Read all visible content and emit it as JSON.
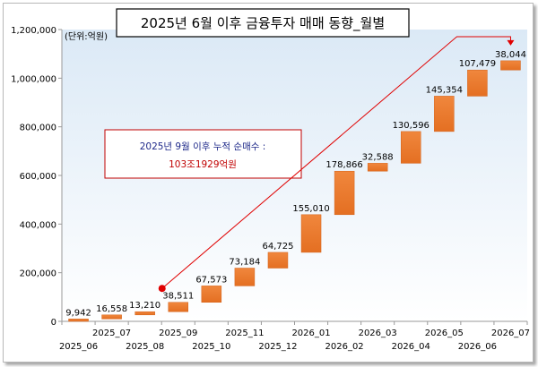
{
  "chart_data": {
    "type": "bar",
    "subtype": "waterfall-cumulative",
    "title": "2025년 6월 이후 금융투자 매매 동향_월별",
    "unit_label": "(단위:억원)",
    "categories": [
      "2025_06",
      "2025_07",
      "2025_08",
      "2025_09",
      "2025_10",
      "2025_11",
      "2025_12",
      "2026_01",
      "2026_02",
      "2026_03",
      "2026_04",
      "2026_05",
      "2026_06",
      "2026_07"
    ],
    "values": [
      9942,
      16558,
      13210,
      38511,
      67573,
      73184,
      64725,
      155010,
      178866,
      32588,
      130596,
      145354,
      107479,
      38044
    ],
    "value_labels": [
      "9,942",
      "16,558",
      "13,210",
      "38,511",
      "67,573",
      "73,184",
      "64,725",
      "155,010",
      "178,866",
      "32,588",
      "130,596",
      "145,354",
      "107,479",
      "38,044"
    ],
    "ylim": [
      0,
      1200000
    ],
    "yticks": [
      0,
      200000,
      400000,
      600000,
      800000,
      1000000,
      1200000
    ],
    "ytick_labels": [
      "0",
      "200,000",
      "400,000",
      "600,000",
      "800,000",
      "1,000,000",
      "1,200,000"
    ],
    "grid": false,
    "bar_color": "#ed7d31",
    "plot_bg_color": "#dae9f7",
    "annotation": {
      "line1": "2025년 9월 이후 누적 순매수 :",
      "line2": "103조1929억원",
      "arrow_color": "#e00000"
    }
  }
}
